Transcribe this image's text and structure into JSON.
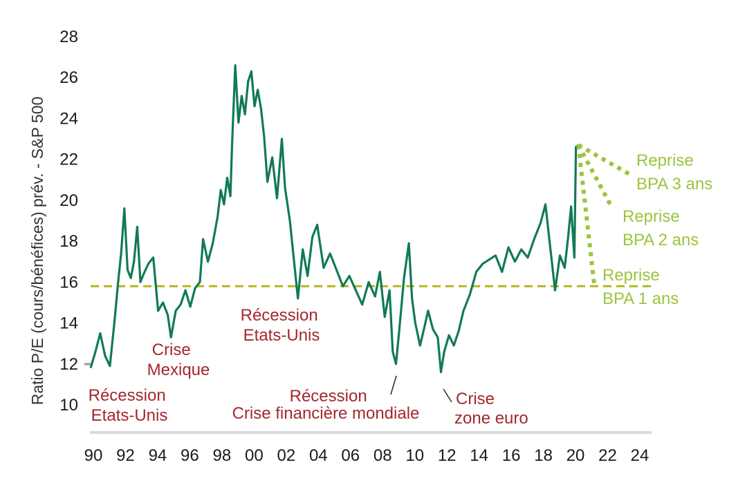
{
  "chart_data": {
    "type": "line",
    "ylabel": "Ratio P/E (cours/bénéfices) prév. - S&P 500",
    "xlabel": "",
    "ylim": [
      10,
      28
    ],
    "xlim": [
      1990,
      2025
    ],
    "y_ticks": [
      "28",
      "26",
      "24",
      "22",
      "20",
      "18",
      "16",
      "14",
      "12",
      "10"
    ],
    "y_tick_values": [
      28,
      26,
      24,
      22,
      20,
      18,
      16,
      14,
      12,
      10
    ],
    "x_ticks": [
      "90",
      "92",
      "94",
      "96",
      "98",
      "00",
      "02",
      "04",
      "06",
      "08",
      "10",
      "12",
      "14",
      "16",
      "18",
      "20",
      "22",
      "24"
    ],
    "x_tick_values": [
      1990,
      1992,
      1994,
      1996,
      1998,
      2000,
      2002,
      2004,
      2006,
      2008,
      2010,
      2012,
      2014,
      2016,
      2018,
      2020,
      2022,
      2024
    ],
    "colors": {
      "pe_line": "#117a57",
      "average": "#b8b41a",
      "scenario": "#9bc53d",
      "annotation": "#a3282d",
      "axis": "#d9d9d9"
    },
    "series": [
      {
        "name": "",
        "x": [
          1990.0,
          1990.3,
          1990.6,
          1990.9,
          1991.2,
          1991.5,
          1991.7,
          1991.9,
          1992.1,
          1992.3,
          1992.5,
          1992.7,
          1992.9,
          1993.1,
          1993.3,
          1993.6,
          1993.9,
          1994.2,
          1994.5,
          1994.8,
          1995.0,
          1995.3,
          1995.6,
          1995.9,
          1996.2,
          1996.5,
          1996.8,
          1997.0,
          1997.3,
          1997.6,
          1997.9,
          1998.1,
          1998.3,
          1998.5,
          1998.7,
          1998.8,
          1999.0,
          1999.2,
          1999.4,
          1999.6,
          1999.8,
          2000.0,
          2000.2,
          2000.4,
          2000.6,
          2000.8,
          2001.0,
          2001.3,
          2001.6,
          2001.9,
          2002.1,
          2002.4,
          2002.7,
          2002.9,
          2003.2,
          2003.5,
          2003.8,
          2004.1,
          2004.5,
          2004.9,
          2005.3,
          2005.7,
          2006.1,
          2006.5,
          2006.9,
          2007.3,
          2007.7,
          2008.0,
          2008.3,
          2008.6,
          2008.8,
          2009.0,
          2009.2,
          2009.5,
          2009.8,
          2010.0,
          2010.2,
          2010.5,
          2010.8,
          2011.0,
          2011.3,
          2011.6,
          2011.8,
          2012.0,
          2012.3,
          2012.6,
          2012.9,
          2013.2,
          2013.6,
          2014.0,
          2014.4,
          2014.8,
          2015.2,
          2015.6,
          2016.0,
          2016.4,
          2016.8,
          2017.2,
          2017.6,
          2018.0,
          2018.3,
          2018.6,
          2018.9,
          2019.2,
          2019.5,
          2019.7,
          2019.9,
          2020.1,
          2020.2,
          2020.35
        ],
        "values": [
          11.8,
          12.6,
          13.5,
          12.4,
          11.9,
          14.2,
          15.9,
          17.4,
          19.6,
          16.6,
          16.2,
          17.0,
          18.7,
          16.0,
          16.4,
          16.9,
          17.2,
          14.6,
          15.0,
          14.4,
          13.3,
          14.6,
          14.9,
          15.6,
          14.8,
          15.7,
          16.0,
          18.1,
          17.0,
          17.9,
          19.2,
          20.5,
          19.8,
          21.1,
          20.2,
          22.7,
          26.6,
          23.8,
          25.1,
          24.2,
          25.8,
          26.3,
          24.6,
          25.4,
          24.5,
          23.1,
          20.9,
          22.1,
          20.1,
          23.0,
          20.6,
          19.0,
          16.7,
          15.2,
          17.6,
          16.3,
          18.2,
          18.8,
          16.7,
          17.4,
          16.6,
          15.8,
          16.3,
          15.6,
          14.9,
          16.0,
          15.3,
          16.5,
          14.3,
          15.6,
          12.6,
          12.0,
          13.6,
          16.2,
          17.9,
          15.2,
          14.0,
          12.9,
          13.9,
          14.6,
          13.7,
          13.3,
          11.6,
          12.6,
          13.4,
          12.9,
          13.6,
          14.6,
          15.4,
          16.5,
          16.9,
          17.1,
          17.3,
          16.5,
          17.7,
          17.0,
          17.6,
          17.2,
          18.1,
          18.9,
          19.8,
          17.7,
          15.6,
          17.3,
          16.7,
          18.1,
          19.7,
          17.2,
          22.6,
          22.7
        ]
      }
    ],
    "average": {
      "value": 15.8,
      "x_start": 1990,
      "x_end": 2025
    },
    "scenarios": [
      {
        "label_line1": "Reprise",
        "label_line2": "BPA 3 ans",
        "x_start": 2020.35,
        "y_start": 22.7,
        "x_end": 2023.7,
        "y_end": 21.2
      },
      {
        "label_line1": "Reprise",
        "label_line2": "BPA 2 ans",
        "x_start": 2020.35,
        "y_start": 22.7,
        "x_end": 2022.4,
        "y_end": 19.7
      },
      {
        "label_line1": "Reprise",
        "label_line2": "BPA 1 ans",
        "x_start": 2020.35,
        "y_start": 22.7,
        "x_end": 2021.35,
        "y_end": 15.8
      }
    ],
    "annotations": [
      {
        "line1": "Récession",
        "line2": "Etats-Unis"
      },
      {
        "line1": "Crise",
        "line2": "Mexique"
      },
      {
        "line1": "Récession",
        "line2": "Etats-Unis"
      },
      {
        "line1": "Récession",
        "line2": "Crise financière mondiale"
      },
      {
        "line1": "Crise",
        "line2": "zone euro"
      }
    ]
  }
}
